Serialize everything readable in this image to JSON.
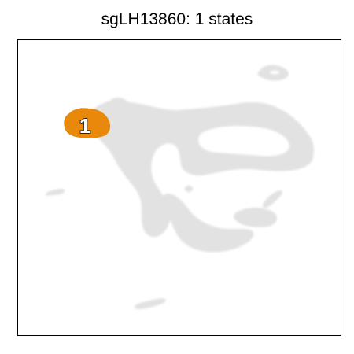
{
  "chart_data": {
    "type": "scatter",
    "title": "sgLH13860: 1 states",
    "xlabel": "",
    "ylabel": "",
    "grid": false,
    "axes_ticks": false,
    "colors": {
      "background_cells": "#e2e2e2",
      "highlight": "#e8890c",
      "label_fill": "#ffffff",
      "label_stroke": "#000000",
      "frame": "#000000"
    },
    "highlighted_states": [
      {
        "label": "1",
        "color": "#e8890c"
      }
    ],
    "background_description_name": "all-cells-embedding"
  }
}
